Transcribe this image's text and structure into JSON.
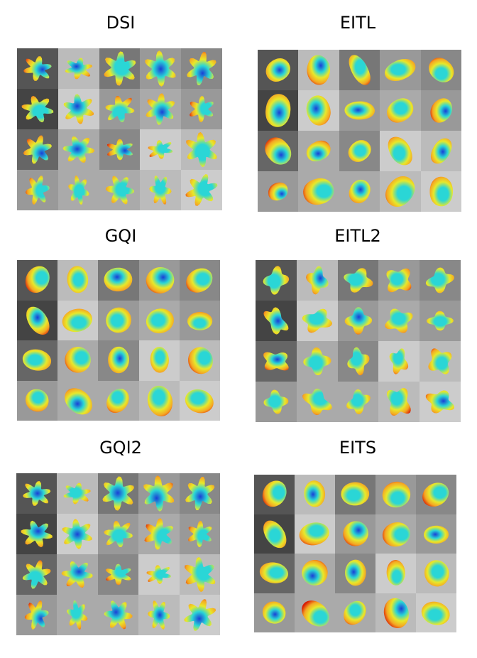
{
  "panels": [
    {
      "id": "dsi",
      "title": "DSI"
    },
    {
      "id": "eitl",
      "title": "EITL"
    },
    {
      "id": "gqi",
      "title": "GQI"
    },
    {
      "id": "eitl2",
      "title": "EITL2"
    },
    {
      "id": "gqi2",
      "title": "GQI2"
    },
    {
      "id": "eits",
      "title": "EITS"
    }
  ],
  "grid": {
    "rows": 4,
    "columns": 5
  },
  "colors": {
    "hot": "#d81e05",
    "warm": "#f5a623",
    "mid": "#e8e82a",
    "cool": "#2ad6d6",
    "cold": "#1a3fd6",
    "background_dark": "#444444",
    "background_light": "#c8c8c8"
  },
  "glyph_style": {
    "dsi": "star",
    "eitl": "smooth",
    "gqi": "round",
    "eitl2": "lobed",
    "gqi2": "star",
    "eits": "round"
  }
}
